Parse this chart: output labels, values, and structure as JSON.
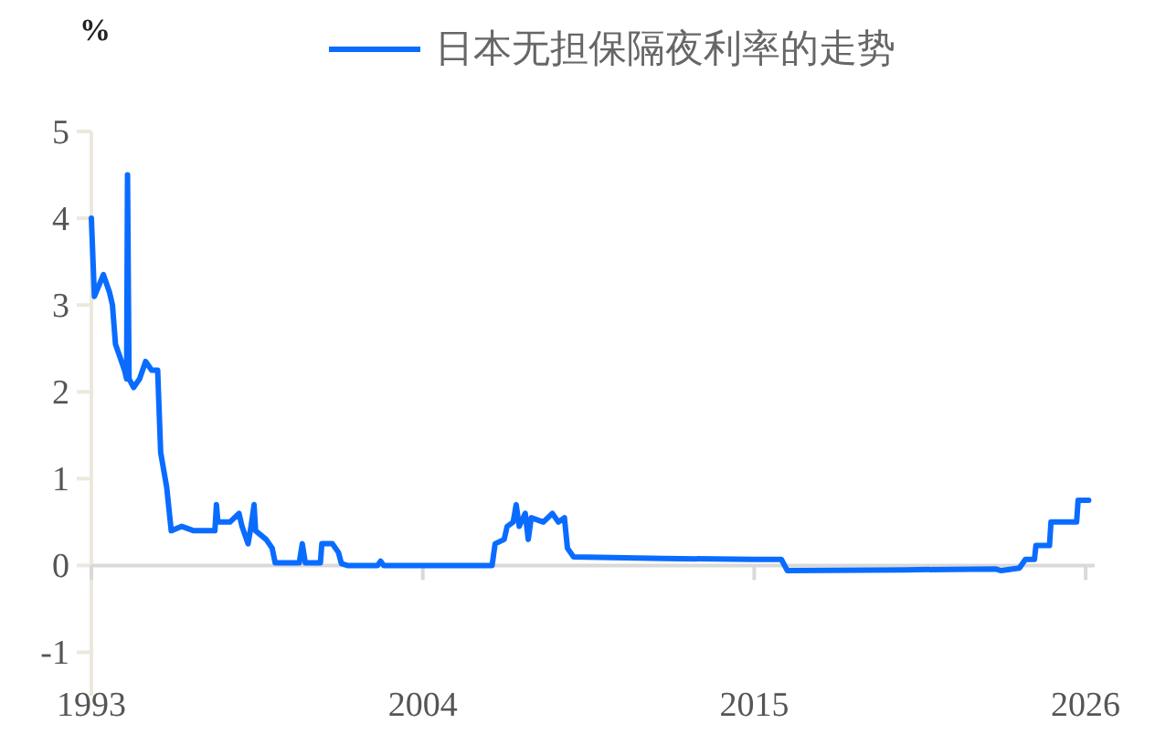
{
  "chart_data": {
    "type": "line",
    "ylabel": "%",
    "legend": "top",
    "x": [
      1993.0,
      1993.1,
      1993.4,
      1993.6,
      1993.7,
      1993.8,
      1993.9,
      1994.1,
      1994.17,
      1994.2,
      1994.25,
      1994.4,
      1994.6,
      1994.8,
      1995.0,
      1995.2,
      1995.3,
      1995.5,
      1995.65,
      1996.0,
      1996.4,
      1997.1,
      1997.15,
      1997.2,
      1997.6,
      1997.9,
      1998.0,
      1998.2,
      1998.3,
      1998.4,
      1998.45,
      1998.8,
      1999.0,
      1999.1,
      1999.9,
      2000.0,
      2000.1,
      2000.6,
      2000.65,
      2001.0,
      2001.2,
      2001.3,
      2001.5,
      2002.5,
      2002.6,
      2002.7,
      2006.3,
      2006.4,
      2006.7,
      2006.8,
      2007.0,
      2007.1,
      2007.2,
      2007.4,
      2007.5,
      2007.6,
      2008.0,
      2008.3,
      2008.5,
      2008.7,
      2008.8,
      2009.0,
      2012.0,
      2015.0,
      2015.9,
      2016.1,
      2020.0,
      2023.0,
      2023.2,
      2023.8,
      2024.0,
      2024.3,
      2024.35,
      2024.8,
      2024.85,
      2025.7,
      2025.75,
      2026.1
    ],
    "series": [
      {
        "name": "日本无担保隔夜利率的走势",
        "color": "#0a6cff",
        "values": [
          4.0,
          3.1,
          3.35,
          3.15,
          3.0,
          2.55,
          2.45,
          2.25,
          2.15,
          4.5,
          2.15,
          2.05,
          2.15,
          2.35,
          2.25,
          2.25,
          1.3,
          0.9,
          0.4,
          0.45,
          0.4,
          0.4,
          0.7,
          0.5,
          0.5,
          0.6,
          0.45,
          0.25,
          0.45,
          0.7,
          0.4,
          0.3,
          0.2,
          0.03,
          0.03,
          0.25,
          0.03,
          0.03,
          0.25,
          0.25,
          0.15,
          0.02,
          0.0,
          0.0,
          0.05,
          0.0,
          0.0,
          0.25,
          0.3,
          0.45,
          0.5,
          0.7,
          0.45,
          0.6,
          0.3,
          0.55,
          0.5,
          0.6,
          0.5,
          0.55,
          0.2,
          0.1,
          0.08,
          0.07,
          0.07,
          -0.06,
          -0.05,
          -0.04,
          -0.06,
          -0.03,
          0.07,
          0.07,
          0.23,
          0.23,
          0.5,
          0.5,
          0.75,
          0.75
        ]
      }
    ],
    "xlim": [
      1993,
      2026.3
    ],
    "xticks": [
      1993,
      2004,
      2015,
      2026
    ],
    "ylim": [
      -1.5,
      5
    ],
    "yticks": [
      -1,
      0,
      1,
      2,
      3,
      4,
      5
    ],
    "ref_lines": [
      {
        "axis": "y",
        "value": 0,
        "color": "#d9d9d9"
      }
    ],
    "grid": false,
    "marker": "none",
    "line_style": "solid"
  }
}
